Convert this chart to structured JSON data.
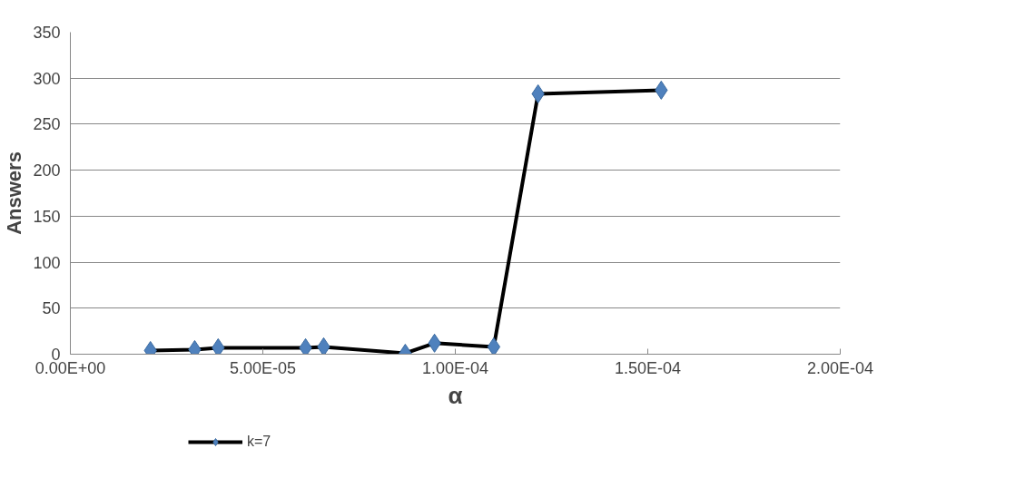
{
  "chart_data": {
    "type": "line",
    "xlabel": "α",
    "ylabel": "Answers",
    "x": [
      2.08e-05,
      3.23e-05,
      3.84e-05,
      6.11e-05,
      6.58e-05,
      8.7e-05,
      9.46e-05,
      0.00011,
      0.0001215,
      0.0001535
    ],
    "series": [
      {
        "name": "k=7",
        "color": "#000000",
        "values": [
          4,
          5,
          7,
          7,
          8,
          1,
          12,
          8,
          283,
          287
        ]
      }
    ],
    "marker": "diamond",
    "line_style": "solid",
    "xlim": [
      0,
      0.0002
    ],
    "xticks": [
      {
        "value": 0,
        "label": "0.00E+00"
      },
      {
        "value": 5e-05,
        "label": "5.00E-05"
      },
      {
        "value": 0.0001,
        "label": "1.00E-04"
      },
      {
        "value": 0.00015,
        "label": "1.50E-04"
      },
      {
        "value": 0.0002,
        "label": "2.00E-04"
      }
    ],
    "ylim": [
      0,
      350
    ],
    "yticks": [
      0,
      50,
      100,
      150,
      200,
      250,
      300,
      350
    ],
    "grid": "y",
    "legend": "bottom left"
  }
}
